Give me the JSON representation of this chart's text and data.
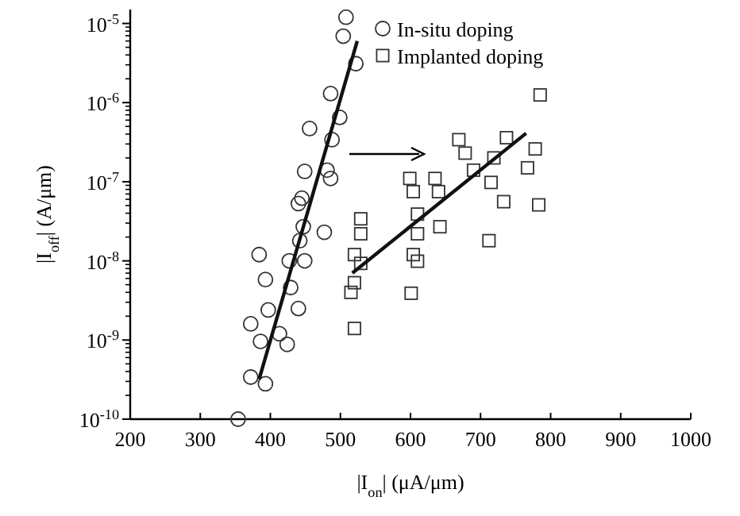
{
  "chart_data": {
    "type": "scatter",
    "xlabel": "|I$_{on}$| (μA/μm)",
    "ylabel": "|I$_{off}$| (A/μm)",
    "log": "y",
    "grid": false,
    "legend": "top right",
    "xlim": [
      200,
      1000
    ],
    "xticks": [
      200,
      300,
      400,
      500,
      600,
      700,
      800,
      900,
      1000
    ],
    "ylim": [
      1e-10,
      1.5e-05
    ],
    "yticks": [
      {
        "value": 1e-10,
        "label": "10$^{-10}$"
      },
      {
        "value": 1e-09,
        "label": "10$^{-9}$"
      },
      {
        "value": 1e-08,
        "label": "10$^{-8}$"
      },
      {
        "value": 1e-07,
        "label": "10$^{-7}$"
      },
      {
        "value": 1e-06,
        "label": "10$^{-6}$"
      },
      {
        "value": 1e-05,
        "label": "10$^{-5}$"
      }
    ],
    "series": [
      {
        "name": "In-situ doping",
        "marker": "circle",
        "color": "#333333",
        "x": [
          508,
          504,
          522,
          486,
          499,
          456,
          488,
          449,
          481,
          486,
          445,
          440,
          477,
          447,
          442,
          384,
          427,
          449,
          393,
          429,
          397,
          440,
          372,
          413,
          386,
          424,
          372,
          393,
          354
        ],
        "values": [
          1.2e-05,
          6.9e-06,
          3.1e-06,
          1.3e-06,
          6.5e-07,
          4.7e-07,
          3.4e-07,
          1.35e-07,
          1.4e-07,
          1.1e-07,
          6.2e-08,
          5.3e-08,
          2.3e-08,
          2.7e-08,
          1.8e-08,
          1.2e-08,
          1e-08,
          1e-08,
          5.8e-09,
          4.6e-09,
          2.4e-09,
          2.5e-09,
          1.6e-09,
          1.2e-09,
          9.6e-10,
          8.8e-10,
          3.4e-10,
          2.8e-10,
          1e-10
        ]
      },
      {
        "name": "Implanted doping",
        "marker": "square",
        "color": "#333333",
        "x": [
          785,
          669,
          737,
          678,
          778,
          719,
          690,
          767,
          599,
          635,
          604,
          640,
          715,
          733,
          783,
          610,
          642,
          610,
          712,
          604,
          610,
          601,
          529,
          529,
          520,
          529,
          520,
          515,
          520
        ],
        "values": [
          1.25e-06,
          3.4e-07,
          3.6e-07,
          2.3e-07,
          2.6e-07,
          2e-07,
          1.4e-07,
          1.5e-07,
          1.1e-07,
          1.1e-07,
          7.5e-08,
          7.5e-08,
          9.8e-08,
          5.6e-08,
          5.1e-08,
          3.9e-08,
          2.7e-08,
          2.2e-08,
          1.8e-08,
          1.2e-08,
          9.9e-09,
          3.9e-09,
          3.4e-08,
          2.2e-08,
          1.2e-08,
          9.3e-09,
          5.3e-09,
          4e-09,
          1.4e-09
        ]
      },
      {
        "type": "line",
        "color": "#111111",
        "x": [
          384,
          524
        ],
        "values": [
          3.2e-10,
          6e-06
        ]
      },
      {
        "type": "line",
        "color": "#111111",
        "x": [
          517,
          765
        ],
        "values": [
          7e-09,
          4.1e-07
        ]
      }
    ]
  }
}
